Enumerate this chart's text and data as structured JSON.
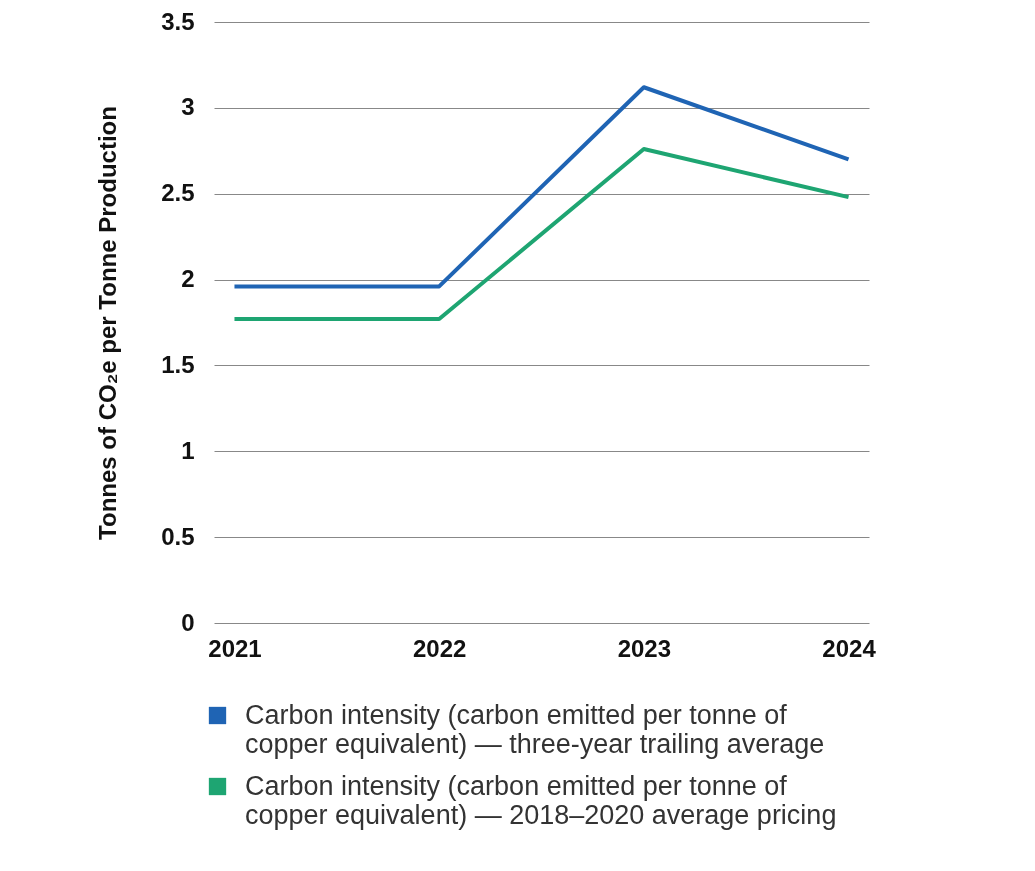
{
  "chart_data": {
    "type": "line",
    "ylabel": "Tonnes of CO₂e per Tonne Production",
    "categories": [
      "2021",
      "2022",
      "2023",
      "2024"
    ],
    "series": [
      {
        "name": "Carbon intensity (carbon emitted per tonne of copper equivalent) — three-year trailing average",
        "color": "#1f64b4",
        "values": [
          1.96,
          1.96,
          3.12,
          2.7
        ]
      },
      {
        "name": "Carbon intensity (carbon emitted per tonne of copper equivalent) — 2018–2020 average pricing",
        "color": "#1ea572",
        "values": [
          1.77,
          1.77,
          2.76,
          2.48
        ]
      }
    ],
    "ylim": [
      0,
      3.5
    ],
    "yticks": [
      0,
      0.5,
      1,
      1.5,
      2,
      2.5,
      3,
      3.5
    ],
    "grid": "y",
    "legend": "bottom",
    "marker": "none",
    "line_style": "solid"
  }
}
